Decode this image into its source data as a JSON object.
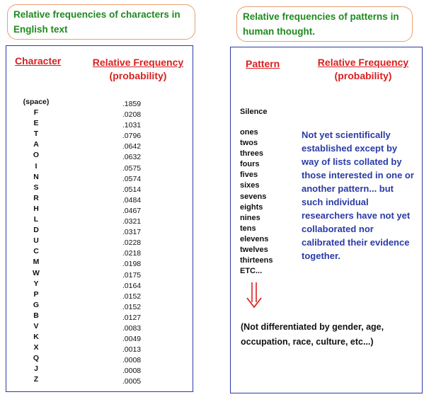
{
  "left": {
    "callout": "Relative frequencies of characters in English text",
    "header_character": "Character",
    "header_freq_line1": "Relative Frequency",
    "header_freq_line2": "(probability)",
    "characters": [
      "(space)",
      "F",
      "E",
      "T",
      "A",
      "O",
      "I",
      "N",
      "S",
      "R",
      "H",
      "L",
      "D",
      "U",
      "C",
      "M",
      "W",
      "Y",
      "P",
      "G",
      "B",
      "V",
      "K",
      "X",
      "Q",
      "J",
      "Z"
    ],
    "frequencies": [
      ".1859",
      ".0208",
      ".1031",
      ".0796",
      ".0642",
      ".0632",
      ".0575",
      ".0574",
      ".0514",
      ".0484",
      ".0467",
      ".0321",
      ".0317",
      ".0228",
      ".0218",
      ".0198",
      ".0175",
      ".0164",
      ".0152",
      ".0152",
      ".0127",
      ".0083",
      ".0049",
      ".0013",
      ".0008",
      ".0008",
      ".0005"
    ]
  },
  "right": {
    "callout": "Relative frequencies of patterns in human thought.",
    "header_pattern": "Pattern",
    "header_freq_line1": "Relative Frequency",
    "header_freq_line2": "(probability)",
    "silence": "Silence",
    "patterns": [
      "ones",
      "twos",
      "threes",
      "fours",
      "fives",
      "sixes",
      "sevens",
      "eights",
      "nines",
      "tens",
      "elevens",
      "twelves",
      "thirteens",
      "ETC..."
    ],
    "note": "Not yet scientifically established except by way of lists collated by those interested in one or another pattern... but such individual researchers have not yet collaborated nor calibrated their evidence together.",
    "arrow_icon": "down-arrow-icon",
    "footer": "(Not differentiated by gender, age, occupation, race, culture, etc...)"
  },
  "colors": {
    "green_text": "#1f8a1f",
    "red_header": "#d82020",
    "blue_note": "#2a3aa6",
    "callout_border": "#e8a070",
    "panel_border": "#2a3aa6"
  }
}
